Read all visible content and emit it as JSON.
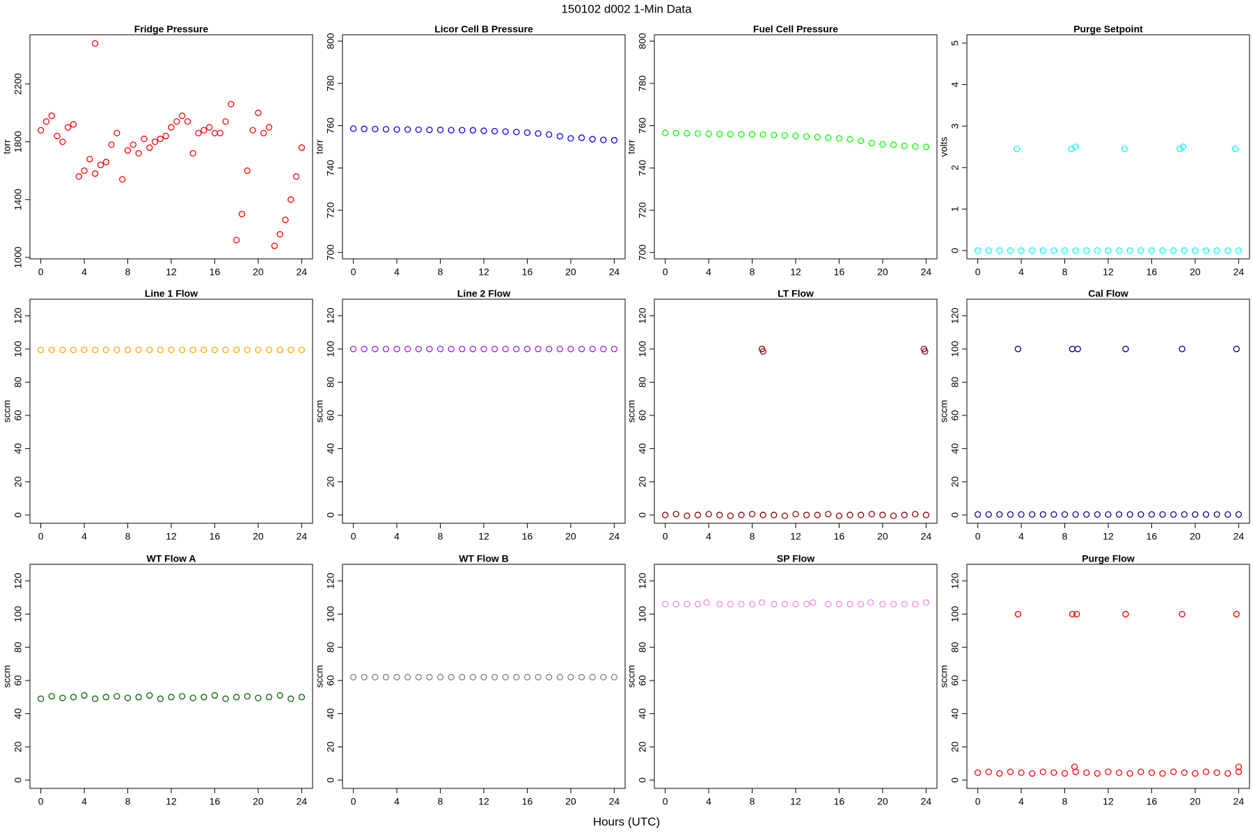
{
  "title": "150102   d002   1-Min Data",
  "xlabel": "Hours (UTC)",
  "chart_data": [
    {
      "type": "scatter",
      "title": "Fridge Pressure",
      "ylabel": "torr",
      "color": "#ff0000",
      "xlim": [
        -1,
        25
      ],
      "xticks": [
        0,
        4,
        8,
        12,
        16,
        20,
        24
      ],
      "ylim": [
        990,
        2540
      ],
      "yticks": [
        1000,
        1400,
        1800,
        2200
      ],
      "x": [
        0,
        0.5,
        1,
        1.5,
        2,
        2.5,
        3,
        3.5,
        4,
        4.5,
        5,
        5.5,
        6,
        6.5,
        7,
        7.5,
        8,
        8.5,
        9,
        9.5,
        10,
        10.5,
        11,
        11.5,
        12,
        12.5,
        13,
        13.5,
        14,
        14.5,
        15,
        15.5,
        16,
        16.5,
        17,
        17.5,
        18,
        18.5,
        19,
        19.5,
        20,
        20.5,
        21,
        21.5,
        22,
        22.5,
        23,
        23.5,
        24,
        5
      ],
      "values": [
        1880,
        1940,
        1980,
        1840,
        1800,
        1900,
        1920,
        1560,
        1600,
        1680,
        1580,
        1640,
        1660,
        1780,
        1860,
        1540,
        1740,
        1780,
        1720,
        1820,
        1760,
        1800,
        1820,
        1840,
        1900,
        1940,
        1980,
        1940,
        1720,
        1860,
        1880,
        1900,
        1860,
        1860,
        1940,
        2060,
        1120,
        1300,
        1600,
        1880,
        2000,
        1860,
        1900,
        1080,
        1160,
        1260,
        1400,
        1560,
        1760,
        2480
      ]
    },
    {
      "type": "scatter",
      "title": "Licor Cell B Pressure",
      "ylabel": "torr",
      "color": "#0000ff",
      "xlim": [
        -1,
        25
      ],
      "xticks": [
        0,
        4,
        8,
        12,
        16,
        20,
        24
      ],
      "ylim": [
        697,
        803
      ],
      "yticks": [
        700,
        720,
        740,
        760,
        780,
        800
      ],
      "x": [
        0,
        1,
        2,
        3,
        4,
        5,
        6,
        7,
        8,
        9,
        10,
        11,
        12,
        13,
        14,
        15,
        16,
        17,
        18,
        19,
        20,
        21,
        22,
        23,
        24
      ],
      "values": [
        758.6,
        758.5,
        758.4,
        758.3,
        758.2,
        758.2,
        758.1,
        758,
        758,
        757.9,
        757.9,
        757.8,
        757.6,
        757.4,
        757.2,
        757,
        756.7,
        756.3,
        755.8,
        755,
        754,
        754.3,
        753.6,
        753.3,
        753.1
      ]
    },
    {
      "type": "scatter",
      "title": "Fuel Cell Pressure",
      "ylabel": "torr",
      "color": "#00ff00",
      "xlim": [
        -1,
        25
      ],
      "xticks": [
        0,
        4,
        8,
        12,
        16,
        20,
        24
      ],
      "ylim": [
        697,
        803
      ],
      "yticks": [
        700,
        720,
        740,
        760,
        780,
        800
      ],
      "x": [
        0,
        1,
        2,
        3,
        4,
        5,
        6,
        7,
        8,
        9,
        10,
        11,
        12,
        13,
        14,
        15,
        16,
        17,
        18,
        19,
        20,
        21,
        22,
        23,
        24
      ],
      "values": [
        756.6,
        756.5,
        756.4,
        756.3,
        756.2,
        756.1,
        756,
        755.9,
        755.9,
        755.8,
        755.6,
        755.4,
        755.2,
        754.9,
        754.6,
        754.3,
        754,
        753.5,
        752.8,
        751.8,
        751.2,
        751,
        750.4,
        750.2,
        750
      ]
    },
    {
      "type": "scatter",
      "title": "Purge Setpoint",
      "ylabel": "volts",
      "color": "#00ffff",
      "xlim": [
        -1,
        25
      ],
      "xticks": [
        0,
        4,
        8,
        12,
        16,
        20,
        24
      ],
      "ylim": [
        -0.2,
        5.2
      ],
      "yticks": [
        0,
        1,
        2,
        3,
        4,
        5
      ],
      "x": [
        0,
        1,
        2,
        3,
        4,
        5,
        6,
        7,
        8,
        9,
        10,
        11,
        12,
        13,
        14,
        15,
        16,
        17,
        18,
        19,
        20,
        21,
        22,
        23,
        24,
        3.6,
        8.6,
        9,
        13.5,
        18.6,
        18.9,
        23.7
      ],
      "values": [
        0,
        0,
        0,
        0,
        0,
        0,
        0,
        0,
        0,
        0,
        0,
        0,
        0,
        0,
        0,
        0,
        0,
        0,
        0,
        0,
        0,
        0,
        0,
        0,
        0,
        2.45,
        2.45,
        2.5,
        2.45,
        2.45,
        2.5,
        2.45
      ]
    },
    {
      "type": "scatter",
      "title": "Line 1 Flow",
      "ylabel": "sccm",
      "color": "#ffa500",
      "xlim": [
        -1,
        25
      ],
      "xticks": [
        0,
        4,
        8,
        12,
        16,
        20,
        24
      ],
      "ylim": [
        -5,
        130
      ],
      "yticks": [
        0,
        20,
        40,
        60,
        80,
        100,
        120
      ],
      "x": [
        0,
        1,
        2,
        3,
        4,
        5,
        6,
        7,
        8,
        9,
        10,
        11,
        12,
        13,
        14,
        15,
        16,
        17,
        18,
        19,
        20,
        21,
        22,
        23,
        24
      ],
      "values": [
        99.5,
        99.5,
        99.5,
        99.5,
        99.5,
        99.5,
        99.5,
        99.5,
        99.5,
        99.5,
        99.5,
        99.5,
        99.5,
        99.5,
        99.5,
        99.5,
        99.5,
        99.5,
        99.5,
        99.5,
        99.5,
        99.5,
        99.5,
        99.5,
        99.5
      ]
    },
    {
      "type": "scatter",
      "title": "Line 2 Flow",
      "ylabel": "sccm",
      "color": "#a020f0",
      "xlim": [
        -1,
        25
      ],
      "xticks": [
        0,
        4,
        8,
        12,
        16,
        20,
        24
      ],
      "ylim": [
        -5,
        130
      ],
      "yticks": [
        0,
        20,
        40,
        60,
        80,
        100,
        120
      ],
      "x": [
        0,
        1,
        2,
        3,
        4,
        5,
        6,
        7,
        8,
        9,
        10,
        11,
        12,
        13,
        14,
        15,
        16,
        17,
        18,
        19,
        20,
        21,
        22,
        23,
        24
      ],
      "values": [
        100,
        100,
        100,
        100,
        100,
        100,
        100,
        100,
        100,
        100,
        100,
        100,
        100,
        100,
        100,
        100,
        100,
        100,
        100,
        100,
        100,
        100,
        100,
        100,
        100
      ]
    },
    {
      "type": "scatter",
      "title": "LT Flow",
      "ylabel": "sccm",
      "color": "#8b0000",
      "xlim": [
        -1,
        25
      ],
      "xticks": [
        0,
        4,
        8,
        12,
        16,
        20,
        24
      ],
      "ylim": [
        -5,
        130
      ],
      "yticks": [
        0,
        20,
        40,
        60,
        80,
        100,
        120
      ],
      "x": [
        0,
        1,
        2,
        3,
        4,
        5,
        6,
        7,
        8,
        9,
        10,
        11,
        12,
        13,
        14,
        15,
        16,
        17,
        18,
        19,
        20,
        21,
        22,
        23,
        24,
        8.9,
        9,
        23.8,
        23.9
      ],
      "values": [
        0,
        0.5,
        -0.5,
        0,
        0.5,
        0,
        -0.5,
        0,
        0.5,
        0,
        0,
        -0.5,
        0.5,
        0,
        0,
        0.5,
        -0.5,
        0,
        0,
        0.5,
        0,
        -0.5,
        0,
        0.5,
        0,
        100,
        98.5,
        100,
        98.5
      ]
    },
    {
      "type": "scatter",
      "title": "Cal Flow",
      "ylabel": "sccm",
      "color": "#00008b",
      "xlim": [
        -1,
        25
      ],
      "xticks": [
        0,
        4,
        8,
        12,
        16,
        20,
        24
      ],
      "ylim": [
        -5,
        130
      ],
      "yticks": [
        0,
        20,
        40,
        60,
        80,
        100,
        120
      ],
      "x": [
        0,
        1,
        2,
        3,
        4,
        5,
        6,
        7,
        8,
        9,
        10,
        11,
        12,
        13,
        14,
        15,
        16,
        17,
        18,
        19,
        20,
        21,
        22,
        23,
        24,
        3.7,
        8.7,
        9.2,
        13.6,
        18.8,
        23.8
      ],
      "values": [
        0.3,
        0.3,
        0.3,
        0.3,
        0.3,
        0.3,
        0.3,
        0.3,
        0.3,
        0.3,
        0.3,
        0.3,
        0.3,
        0.3,
        0.3,
        0.3,
        0.3,
        0.3,
        0.3,
        0.3,
        0.3,
        0.3,
        0.3,
        0.3,
        0.3,
        100,
        100,
        100,
        100,
        100,
        100
      ]
    },
    {
      "type": "scatter",
      "title": "WT Flow A",
      "ylabel": "sccm",
      "color": "#006400",
      "xlim": [
        -1,
        25
      ],
      "xticks": [
        0,
        4,
        8,
        12,
        16,
        20,
        24
      ],
      "ylim": [
        -5,
        130
      ],
      "yticks": [
        0,
        20,
        40,
        60,
        80,
        100,
        120
      ],
      "x": [
        0,
        1,
        2,
        3,
        4,
        5,
        6,
        7,
        8,
        9,
        10,
        11,
        12,
        13,
        14,
        15,
        16,
        17,
        18,
        19,
        20,
        21,
        22,
        23,
        24
      ],
      "values": [
        49,
        50.5,
        49.5,
        50,
        51,
        49,
        50,
        50.5,
        49.5,
        50,
        51,
        49,
        50,
        50.5,
        49.5,
        50,
        51,
        49,
        50,
        50.5,
        49.5,
        50,
        51,
        49,
        50
      ]
    },
    {
      "type": "scatter",
      "title": "WT Flow B",
      "ylabel": "sccm",
      "color": "#808080",
      "xlim": [
        -1,
        25
      ],
      "xticks": [
        0,
        4,
        8,
        12,
        16,
        20,
        24
      ],
      "ylim": [
        -5,
        130
      ],
      "yticks": [
        0,
        20,
        40,
        60,
        80,
        100,
        120
      ],
      "x": [
        0,
        1,
        2,
        3,
        4,
        5,
        6,
        7,
        8,
        9,
        10,
        11,
        12,
        13,
        14,
        15,
        16,
        17,
        18,
        19,
        20,
        21,
        22,
        23,
        24
      ],
      "values": [
        62,
        62,
        62,
        62,
        62,
        62,
        62,
        62,
        62,
        62,
        62,
        62,
        62,
        62,
        62,
        62,
        62,
        62,
        62,
        62,
        62,
        62,
        62,
        62,
        62
      ]
    },
    {
      "type": "scatter",
      "title": "SP Flow",
      "ylabel": "sccm",
      "color": "#ee82ee",
      "xlim": [
        -1,
        25
      ],
      "xticks": [
        0,
        4,
        8,
        12,
        16,
        20,
        24
      ],
      "ylim": [
        -5,
        130
      ],
      "yticks": [
        0,
        20,
        40,
        60,
        80,
        100,
        120
      ],
      "x": [
        0,
        1,
        2,
        3,
        3.8,
        5,
        6,
        7,
        8,
        8.9,
        10,
        11,
        12,
        13,
        13.6,
        15,
        16,
        17,
        18,
        18.9,
        20,
        21,
        22,
        23,
        24
      ],
      "values": [
        106,
        106,
        106,
        106,
        107,
        106,
        106,
        106,
        106,
        107,
        106,
        106,
        106,
        106,
        107,
        106,
        106,
        106,
        106,
        107,
        106,
        106,
        106,
        106,
        107
      ]
    },
    {
      "type": "scatter",
      "title": "Purge Flow",
      "ylabel": "sccm",
      "color": "#ff0000",
      "xlim": [
        -1,
        25
      ],
      "xticks": [
        0,
        4,
        8,
        12,
        16,
        20,
        24
      ],
      "ylim": [
        -5,
        130
      ],
      "yticks": [
        0,
        20,
        40,
        60,
        80,
        100,
        120
      ],
      "x": [
        0,
        1,
        2,
        3,
        4,
        5,
        6,
        7,
        8,
        9,
        10,
        11,
        12,
        13,
        14,
        15,
        16,
        17,
        18,
        19,
        20,
        21,
        22,
        23,
        24,
        3.7,
        8.7,
        9.1,
        13.6,
        18.8,
        23.8,
        8.9,
        24
      ],
      "values": [
        4.5,
        5,
        4,
        5,
        4.5,
        4,
        5,
        4.5,
        4,
        5,
        4.5,
        4,
        5,
        4.5,
        4,
        5,
        4.5,
        4,
        5,
        4.5,
        4,
        5,
        4.5,
        4,
        5,
        100,
        100,
        100,
        100,
        100,
        100,
        8,
        8
      ]
    }
  ]
}
